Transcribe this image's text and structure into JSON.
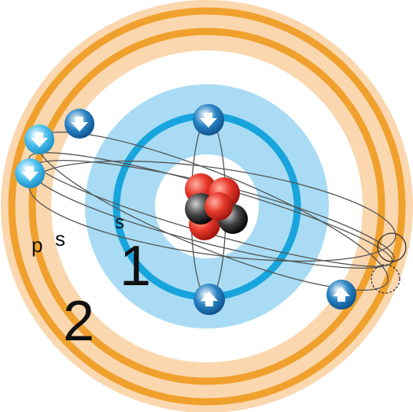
{
  "shells": [
    {
      "number": "1",
      "subshells": [
        "s"
      ]
    },
    {
      "number": "2",
      "subshells": [
        "s",
        "p"
      ]
    }
  ]
}
